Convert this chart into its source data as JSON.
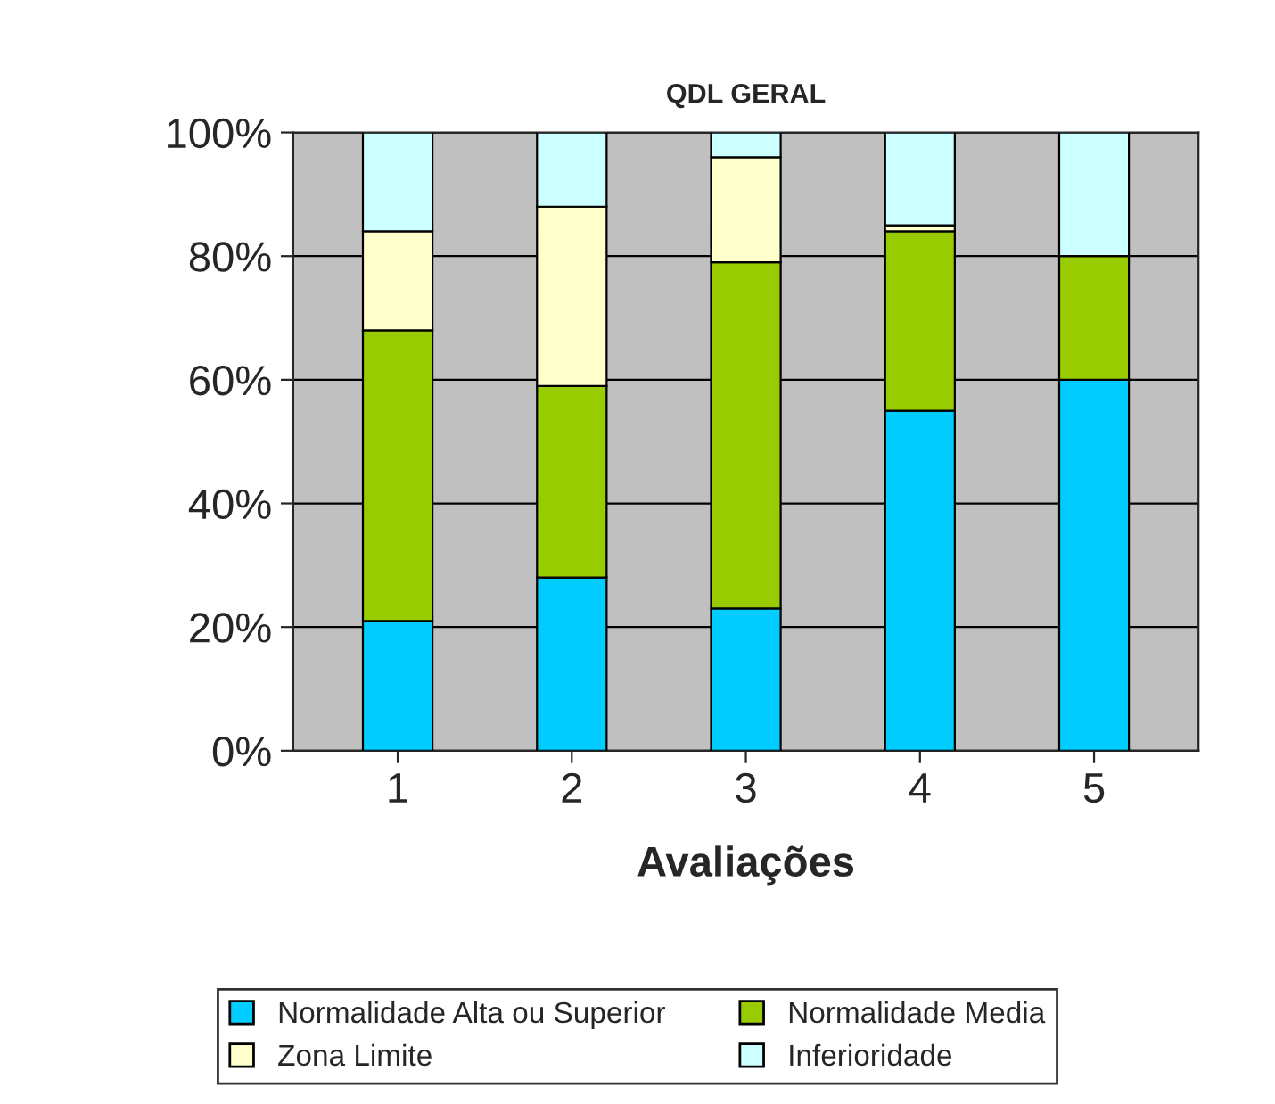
{
  "chart_data": {
    "type": "bar",
    "title": "QDL GERAL",
    "xlabel": "Avaliações",
    "stacked": true,
    "categories": [
      "1",
      "2",
      "3",
      "4",
      "5"
    ],
    "series": [
      {
        "name": "Normalidade Alta ou Superior",
        "color": "#00ccff",
        "values": [
          21,
          28,
          23,
          55,
          60
        ]
      },
      {
        "name": "Normalidade Media",
        "color": "#99cc00",
        "values": [
          47,
          31,
          56,
          29,
          20
        ]
      },
      {
        "name": "Zona Limite",
        "color": "#ffffcc",
        "values": [
          16,
          29,
          17,
          1,
          null
        ]
      },
      {
        "name": "Inferioridade",
        "color": "#ccffff",
        "values": [
          16,
          12,
          4,
          15,
          20
        ]
      }
    ],
    "ylim": [
      0,
      100
    ],
    "yticks": [
      {
        "value": 0,
        "label": "0%"
      },
      {
        "value": 20,
        "label": "20%"
      },
      {
        "value": 40,
        "label": "40%"
      },
      {
        "value": 60,
        "label": "60%"
      },
      {
        "value": 80,
        "label": "80%"
      },
      {
        "value": 100,
        "label": "100%"
      }
    ],
    "grid": "y",
    "legend": "bottom"
  }
}
